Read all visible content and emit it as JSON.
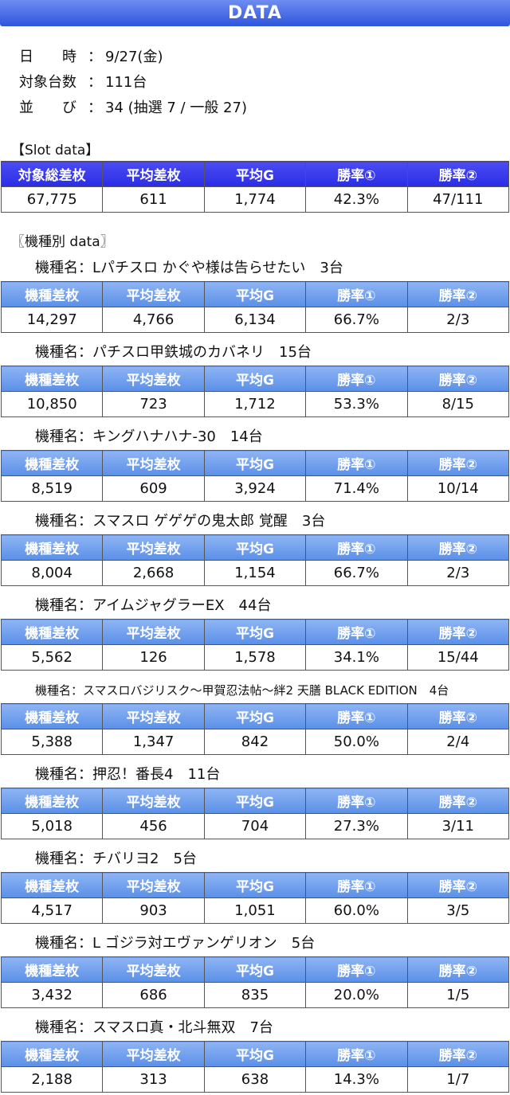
{
  "banner": {
    "title": "DATA"
  },
  "info": {
    "date_label": "日　　時",
    "date_value": "9/27(金)",
    "count_label": "対象台数",
    "count_value": "111台",
    "line_label": "並　　び",
    "line_value": "34 (抽選 7 / 一般 27)"
  },
  "slot_section": {
    "title": "【Slot data】"
  },
  "slot_table": {
    "headers": [
      "対象総差枚",
      "平均差枚",
      "平均G",
      "勝率①",
      "勝率②"
    ],
    "values": [
      "67,775",
      "611",
      "1,774",
      "42.3%",
      "47/111"
    ]
  },
  "model_section": {
    "title": "〖機種別 data〗"
  },
  "model_headers": [
    "機種差枚",
    "平均差枚",
    "平均G",
    "勝率①",
    "勝率②"
  ],
  "models": [
    {
      "name": "機種名：Lパチスロ かぐや様は告らせたい　3台",
      "values": [
        "14,297",
        "4,766",
        "6,134",
        "66.7%",
        "2/3"
      ]
    },
    {
      "name": "機種名：パチスロ甲鉄城のカバネリ　15台",
      "values": [
        "10,850",
        "723",
        "1,712",
        "53.3%",
        "8/15"
      ]
    },
    {
      "name": "機種名：キングハナハナ-30　14台",
      "values": [
        "8,519",
        "609",
        "3,924",
        "71.4%",
        "10/14"
      ]
    },
    {
      "name": "機種名：スマスロ ゲゲゲの鬼太郎 覚醒　3台",
      "values": [
        "8,004",
        "2,668",
        "1,154",
        "66.7%",
        "2/3"
      ]
    },
    {
      "name": "機種名：アイムジャグラーEX　44台",
      "values": [
        "5,562",
        "126",
        "1,578",
        "34.1%",
        "15/44"
      ]
    },
    {
      "name": "機種名：スマスロバジリスク～甲賀忍法帖～絆2 天膳 BLACK EDITION　4台",
      "values": [
        "5,388",
        "1,347",
        "842",
        "50.0%",
        "2/4"
      ]
    },
    {
      "name": "機種名：押忍！番長4　11台",
      "values": [
        "5,018",
        "456",
        "704",
        "27.3%",
        "3/11"
      ]
    },
    {
      "name": "機種名：チバリヨ2　5台",
      "values": [
        "4,517",
        "903",
        "1,051",
        "60.0%",
        "3/5"
      ]
    },
    {
      "name": "機種名：L ゴジラ対エヴァンゲリオン　5台",
      "values": [
        "3,432",
        "686",
        "835",
        "20.0%",
        "1/5"
      ]
    },
    {
      "name": "機種名：スマスロ真・北斗無双　7台",
      "values": [
        "2,188",
        "313",
        "638",
        "14.3%",
        "1/7"
      ]
    }
  ]
}
